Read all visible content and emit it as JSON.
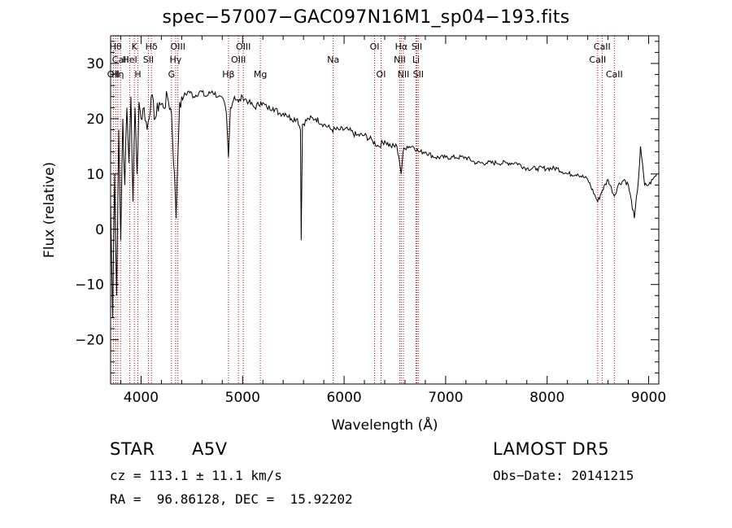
{
  "chart_data": {
    "type": "line",
    "title": "spec−57007−GAC097N16M1_sp04−193.fits",
    "xlabel": "Wavelength (Å)",
    "ylabel": "Flux (relative)",
    "xlim": [
      3700,
      9100
    ],
    "ylim": [
      -28,
      35
    ],
    "xticks": [
      4000,
      5000,
      6000,
      7000,
      8000,
      9000
    ],
    "yticks": [
      -20,
      -10,
      0,
      10,
      20,
      30
    ],
    "ytick_labels": [
      "−20",
      "−10",
      "0",
      "10",
      "20",
      "30"
    ],
    "series": [
      {
        "x": [
          3700,
          3720,
          3740,
          3760,
          3780,
          3800,
          3820,
          3840,
          3860,
          3880,
          3900,
          3920,
          3940,
          3960,
          3980,
          4000,
          4030,
          4060,
          4100,
          4140,
          4180,
          4220,
          4260,
          4300,
          4340,
          4345,
          4360,
          4380,
          4420,
          4470,
          4520,
          4580,
          4640,
          4700,
          4760,
          4820,
          4840,
          4861,
          4880,
          4920,
          4960,
          5000,
          5060,
          5120,
          5180,
          5240,
          5300,
          5360,
          5420,
          5480,
          5540,
          5570,
          5577,
          5590,
          5650,
          5720,
          5800,
          5880,
          5960,
          6040,
          6120,
          6200,
          6280,
          6340,
          6400,
          6460,
          6520,
          6540,
          6563,
          6580,
          6620,
          6680,
          6740,
          6800,
          6900,
          7000,
          7100,
          7200,
          7300,
          7400,
          7500,
          7600,
          7700,
          7800,
          7900,
          8000,
          8100,
          8200,
          8300,
          8400,
          8498,
          8542,
          8600,
          8662,
          8700,
          8760,
          8800,
          8860,
          8900,
          8920,
          8960,
          9000,
          9040,
          9080
        ],
        "y": [
          5,
          -16,
          10,
          -12,
          18,
          -2,
          20,
          8,
          22,
          12,
          24,
          5,
          22,
          10,
          23,
          20,
          22,
          18,
          24,
          20,
          23,
          22,
          24,
          21,
          5,
          2,
          12,
          23,
          24,
          25,
          24,
          25,
          24,
          25,
          24,
          23,
          21,
          13,
          22,
          24,
          23,
          24,
          23,
          22,
          23,
          22,
          22,
          21,
          21,
          20,
          20,
          18,
          -2,
          19,
          20,
          20,
          19,
          18,
          18,
          18,
          17,
          17,
          16,
          15,
          16,
          15,
          15,
          13,
          10,
          14,
          15,
          15,
          14,
          14,
          13,
          13,
          13,
          13,
          12,
          12,
          12,
          12,
          12,
          11,
          11,
          11,
          11,
          10,
          10,
          9,
          5,
          7,
          9,
          6,
          8,
          9,
          8,
          2,
          9,
          15,
          8,
          8,
          9,
          10
        ]
      }
    ],
    "spectral_lines": [
      {
        "wl": 3727,
        "label": "OII",
        "row": 3
      },
      {
        "wl": 3750,
        "label": "Hθ",
        "row": 1
      },
      {
        "wl": 3771,
        "label": "Hη",
        "row": 3
      },
      {
        "wl": 3798,
        "label": "CaII",
        "row": 2
      },
      {
        "wl": 3889,
        "label": "HeI",
        "row": 2
      },
      {
        "wl": 3934,
        "label": "K",
        "row": 1
      },
      {
        "wl": 3969,
        "label": "H",
        "row": 3
      },
      {
        "wl": 4072,
        "label": "SII",
        "row": 2
      },
      {
        "wl": 4102,
        "label": "Hδ",
        "row": 1
      },
      {
        "wl": 4300,
        "label": "G",
        "row": 3
      },
      {
        "wl": 4340,
        "label": "Hγ",
        "row": 2
      },
      {
        "wl": 4363,
        "label": "OIII",
        "row": 1
      },
      {
        "wl": 4861,
        "label": "Hβ",
        "row": 3
      },
      {
        "wl": 4959,
        "label": "OIII",
        "row": 2
      },
      {
        "wl": 5007,
        "label": "OIII",
        "row": 1
      },
      {
        "wl": 5175,
        "label": "Mg",
        "row": 3
      },
      {
        "wl": 5893,
        "label": "Na",
        "row": 2
      },
      {
        "wl": 6300,
        "label": "OI",
        "row": 1
      },
      {
        "wl": 6364,
        "label": "OI",
        "row": 3
      },
      {
        "wl": 6548,
        "label": "NII",
        "row": 2
      },
      {
        "wl": 6563,
        "label": "Hα",
        "row": 1
      },
      {
        "wl": 6584,
        "label": "NII",
        "row": 3
      },
      {
        "wl": 6708,
        "label": "Li",
        "row": 2
      },
      {
        "wl": 6717,
        "label": "SII",
        "row": 1
      },
      {
        "wl": 6731,
        "label": "SII",
        "row": 3
      },
      {
        "wl": 8498,
        "label": "CaII",
        "row": 2
      },
      {
        "wl": 8542,
        "label": "CaII",
        "row": 1
      },
      {
        "wl": 8662,
        "label": "CaII",
        "row": 3
      }
    ],
    "grid": false,
    "legend": "none",
    "colors": {
      "spectrum": "#000000",
      "line_markers": "#cc0000",
      "axes": "#000000"
    }
  },
  "info": {
    "object_class": "STAR",
    "subclass": "A5V",
    "survey": "LAMOST DR5",
    "cz": "cz = 113.1 ± 11.1 km/s",
    "obs_date": "Obs−Date: 20141215",
    "coords": "RA =  96.86128, DEC =  15.92202"
  }
}
